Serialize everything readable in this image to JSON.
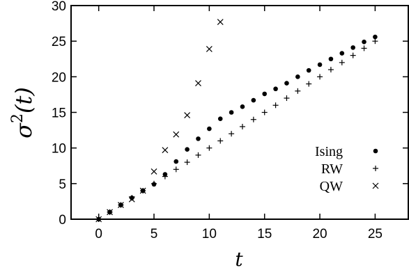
{
  "chart_data": {
    "type": "scatter",
    "title": "",
    "xlabel": "t",
    "ylabel_base": "σ",
    "ylabel_exp": "2",
    "ylabel_arg": "(t)",
    "xlim": [
      -2.5,
      28
    ],
    "ylim": [
      0,
      30
    ],
    "xticks": [
      0,
      5,
      10,
      15,
      20,
      25
    ],
    "yticks": [
      0,
      5,
      10,
      15,
      20,
      25,
      30
    ],
    "grid": false,
    "legend_position": "bottom-right",
    "series": [
      {
        "name": "Ising",
        "marker": "dot",
        "x": [
          0,
          1,
          2,
          3,
          4,
          5,
          6,
          7,
          8,
          9,
          10,
          11,
          12,
          13,
          14,
          15,
          16,
          17,
          18,
          19,
          20,
          21,
          22,
          23,
          24,
          25
        ],
        "y": [
          0,
          1,
          2,
          3,
          4,
          4.9,
          6.3,
          8.1,
          9.8,
          11.3,
          12.7,
          14.1,
          15.0,
          15.8,
          16.7,
          17.6,
          18.3,
          19.1,
          20.0,
          20.9,
          21.7,
          22.5,
          23.3,
          24.1,
          24.9,
          25.6
        ]
      },
      {
        "name": "RW",
        "marker": "plus",
        "x": [
          0,
          1,
          2,
          3,
          4,
          5,
          6,
          7,
          8,
          9,
          10,
          11,
          12,
          13,
          14,
          15,
          16,
          17,
          18,
          19,
          20,
          21,
          22,
          23,
          24,
          25
        ],
        "y": [
          0,
          1,
          2,
          3,
          4,
          5,
          6,
          7,
          8,
          9,
          10,
          11,
          12,
          13,
          14,
          15,
          16,
          17,
          18,
          19,
          20,
          21,
          22,
          23,
          24,
          25
        ]
      },
      {
        "name": "QW",
        "marker": "cross",
        "x": [
          0,
          1,
          2,
          3,
          4,
          5,
          6,
          7,
          8,
          9,
          10,
          11
        ],
        "y": [
          0,
          1,
          2,
          2.8,
          4.0,
          6.7,
          9.7,
          11.9,
          14.6,
          19.1,
          23.9,
          27.7
        ]
      }
    ]
  }
}
